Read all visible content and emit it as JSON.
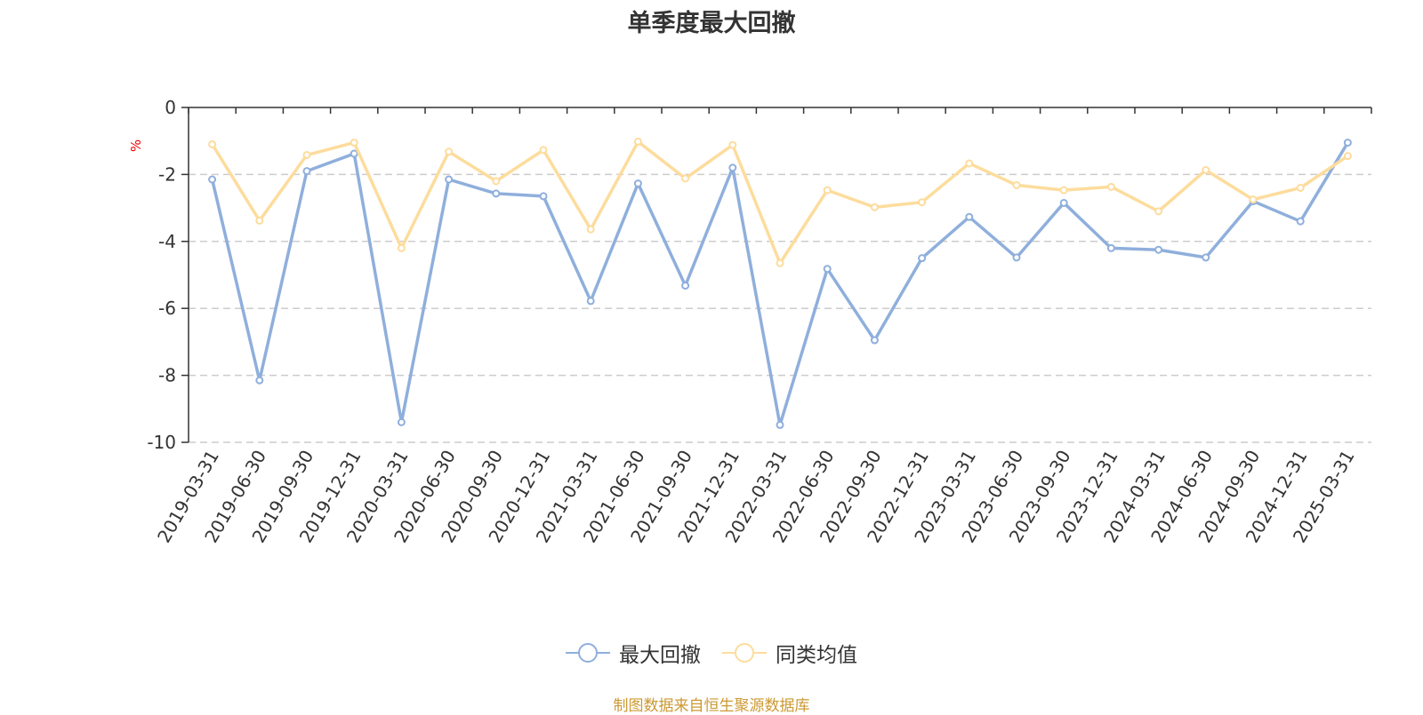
{
  "chart_data": {
    "type": "line",
    "title": "单季度最大回撤",
    "ylabel": "%",
    "ylim": [
      -10,
      0
    ],
    "yticks": [
      0,
      -2,
      -4,
      -6,
      -8,
      -10
    ],
    "grid": true,
    "legend_position": "bottom",
    "categories": [
      "2019-03-31",
      "2019-06-30",
      "2019-09-30",
      "2019-12-31",
      "2020-03-31",
      "2020-06-30",
      "2020-09-30",
      "2020-12-31",
      "2021-03-31",
      "2021-06-30",
      "2021-09-30",
      "2021-12-31",
      "2022-03-31",
      "2022-06-30",
      "2022-09-30",
      "2022-12-31",
      "2023-03-31",
      "2023-06-30",
      "2023-09-30",
      "2023-12-31",
      "2024-03-31",
      "2024-06-30",
      "2024-09-30",
      "2024-12-31",
      "2025-03-31"
    ],
    "series": [
      {
        "name": "最大回撤",
        "color": "#8fafdc",
        "values": [
          -2.15,
          -8.15,
          -1.9,
          -1.38,
          -9.4,
          -2.15,
          -2.57,
          -2.65,
          -5.78,
          -2.27,
          -5.32,
          -1.8,
          -9.48,
          -4.82,
          -6.95,
          -4.5,
          -3.27,
          -4.48,
          -2.85,
          -4.2,
          -4.25,
          -4.48,
          -2.8,
          -3.4,
          -1.05
        ]
      },
      {
        "name": "同类均值",
        "color": "#fddc9c",
        "values": [
          -1.1,
          -3.38,
          -1.42,
          -1.05,
          -4.2,
          -1.32,
          -2.2,
          -1.27,
          -3.64,
          -1.02,
          -2.12,
          -1.12,
          -4.65,
          -2.47,
          -2.98,
          -2.83,
          -1.67,
          -2.32,
          -2.47,
          -2.37,
          -3.1,
          -1.87,
          -2.75,
          -2.4,
          -1.45
        ]
      }
    ]
  },
  "footer": {
    "text": "制图数据来自恒生聚源数据库",
    "color": "#cc9933"
  },
  "colors": {
    "axis": "#333333",
    "grid": "#cccccc",
    "unit": "#ee0000"
  }
}
